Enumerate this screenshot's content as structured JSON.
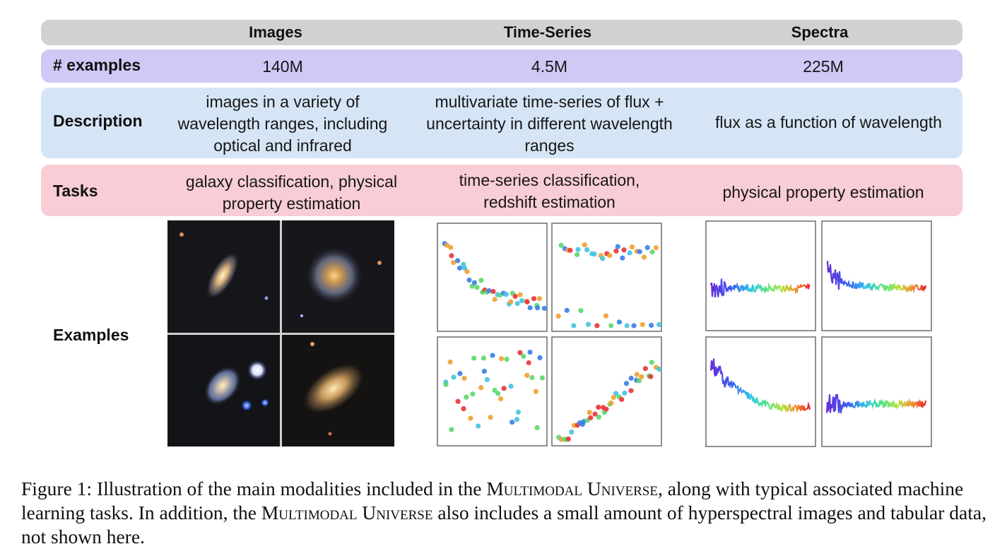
{
  "columns": [
    "Images",
    "Time-Series",
    "Spectra"
  ],
  "rows": {
    "examples": {
      "label": "# examples",
      "values": [
        "140M",
        "4.5M",
        "225M"
      ]
    },
    "description": {
      "label": "Description",
      "values": [
        "images in a variety of\nwavelength ranges, including\noptical and infrared",
        "multivariate time-series of flux +\nuncertainty in different wavelength\nranges",
        "flux as a function of wavelength"
      ]
    },
    "tasks": {
      "label": "Tasks",
      "values": [
        "galaxy classification, physical\nproperty estimation",
        "time-series classification,\nredshift estimation",
        "physical property estimation"
      ]
    },
    "examples_row": {
      "label": "Examples"
    }
  },
  "caption": {
    "prefix": "Figure 1: Illustration of the main modalities included in the ",
    "name": "Multimodal Universe",
    "middle": ", along with typical associated machine learning tasks. In addition, the ",
    "suffix": " also includes a small amount of hyperspectral images and tabular data, not shown here."
  },
  "colors": {
    "header": "#d1d1d1",
    "examples": "#cfc9f6",
    "description": "#d6e5f6",
    "tasks": "#f8cdd5"
  }
}
